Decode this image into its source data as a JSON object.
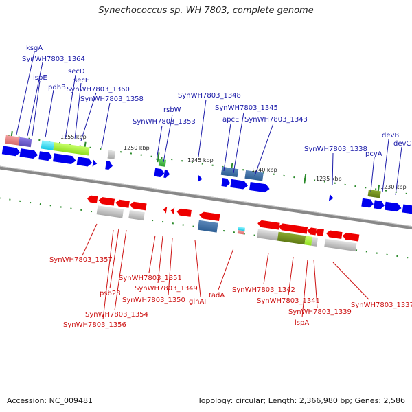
{
  "title": "Synechococcus sp. WH 7803, complete genome",
  "footer": {
    "accession": "Accession: NC_009481",
    "summary": "Topology: circular; Length: 2,366,980 bp; Genes: 2,586"
  },
  "colors": {
    "forward_gene": "#0000ee",
    "reverse_gene": "#ee0000",
    "backbone": "#888888",
    "tick": "#228822",
    "label_forward": "#1a1aa8",
    "label_reverse": "#cc1111"
  },
  "scale_labels": [
    "1255 kbp",
    "1250 kbp",
    "1245 kbp",
    "1240 kbp",
    "1235 kbp",
    "1230 kbp"
  ],
  "labels_top": [
    "ksgA",
    "SynWH7803_1364",
    "ispE",
    "pdhB",
    "secD",
    "secF",
    "SynWH7803_1360",
    "SynWH7803_1358",
    "rsbW",
    "SynWH7803_1353",
    "SynWH7803_1348",
    "SynWH7803_1345",
    "apcE",
    "SynWH7803_1343",
    "SynWH7803_1338",
    "pcyA",
    "devB",
    "devC"
  ],
  "labels_bottom": [
    "SynWH7803_1357",
    "psb28",
    "SynWH7803_1354",
    "SynWH7803_1356",
    "SynWH7803_1351",
    "SynWH7803_1349",
    "SynWH7803_1350",
    "glnAI",
    "tadA",
    "SynWH7803_1342",
    "SynWH7803_1341",
    "SynWH7803_1339",
    "lspA",
    "SynWH7803_1337"
  ]
}
